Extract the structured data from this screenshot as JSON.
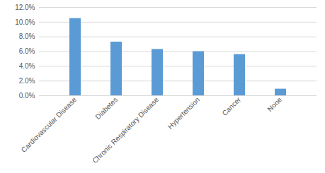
{
  "chart_data": {
    "type": "bar",
    "categories": [
      "Cardiovascular Disease",
      "Diabetes",
      "Chronic Respiratory Disease",
      "Hypertension",
      "Cancer",
      "None"
    ],
    "values": [
      10.5,
      7.3,
      6.3,
      6.0,
      5.6,
      0.9
    ],
    "color": "#5b9bd5",
    "ylim": [
      0,
      12
    ],
    "yticks": [
      {
        "value": 0,
        "label": "0.0%"
      },
      {
        "value": 2,
        "label": "2.0%"
      },
      {
        "value": 4,
        "label": "4.0%"
      },
      {
        "value": 6,
        "label": "6.0%"
      },
      {
        "value": 8,
        "label": "8.0%"
      },
      {
        "value": 10,
        "label": "10.0%"
      },
      {
        "value": 12,
        "label": "12.0%"
      }
    ],
    "grid": true
  }
}
